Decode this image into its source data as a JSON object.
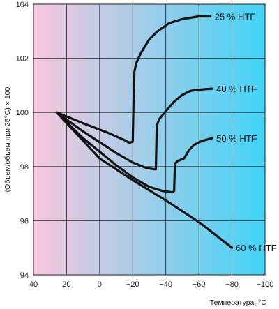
{
  "chart_data": {
    "type": "line",
    "title": "",
    "xlabel": "Температура, °C",
    "ylabel": "(Объем/объем при 25°C) × 100",
    "x_reversed": true,
    "xlim": [
      40,
      -100
    ],
    "ylim": [
      94,
      104
    ],
    "x_ticks": [
      40,
      20,
      0,
      -20,
      -40,
      -60,
      -80,
      -100
    ],
    "y_ticks": [
      94,
      96,
      98,
      100,
      102,
      104
    ],
    "x_tick_labels": [
      "40",
      "20",
      "0",
      "−20",
      "−40",
      "−60",
      "−80",
      "−100"
    ],
    "y_tick_labels": [
      "94",
      "96",
      "98",
      "100",
      "102",
      "104"
    ],
    "grid": true,
    "background_gradient": [
      "#f9c8de",
      "#40d3f5"
    ],
    "line_color": "#111111",
    "series": [
      {
        "name": "25 % HTF",
        "points": [
          [
            26,
            100.0
          ],
          [
            10,
            99.6
          ],
          [
            -5,
            99.25
          ],
          [
            -15,
            98.98
          ],
          [
            -18,
            98.88
          ],
          [
            -20,
            98.92
          ],
          [
            -20.5,
            100.5
          ],
          [
            -21,
            101.5
          ],
          [
            -22,
            101.8
          ],
          [
            -25,
            102.2
          ],
          [
            -30,
            102.7
          ],
          [
            -35,
            103.0
          ],
          [
            -42,
            103.3
          ],
          [
            -50,
            103.45
          ],
          [
            -60,
            103.55
          ],
          [
            -67,
            103.55
          ]
        ]
      },
      {
        "name": "40 % HTF",
        "points": [
          [
            26,
            100.0
          ],
          [
            10,
            99.3
          ],
          [
            0,
            98.9
          ],
          [
            -10,
            98.5
          ],
          [
            -20,
            98.15
          ],
          [
            -28,
            97.95
          ],
          [
            -33,
            97.9
          ],
          [
            -34,
            97.9
          ],
          [
            -34.5,
            99.5
          ],
          [
            -36,
            99.75
          ],
          [
            -40,
            100.05
          ],
          [
            -45,
            100.4
          ],
          [
            -50,
            100.65
          ],
          [
            -55,
            100.8
          ],
          [
            -62,
            100.85
          ],
          [
            -68,
            100.88
          ]
        ]
      },
      {
        "name": "50 % HTF",
        "points": [
          [
            26,
            100.0
          ],
          [
            10,
            99.05
          ],
          [
            0,
            98.55
          ],
          [
            -10,
            98.05
          ],
          [
            -20,
            97.6
          ],
          [
            -30,
            97.25
          ],
          [
            -38,
            97.1
          ],
          [
            -44,
            97.05
          ],
          [
            -45,
            97.1
          ],
          [
            -45.5,
            98.1
          ],
          [
            -47,
            98.2
          ],
          [
            -51,
            98.3
          ],
          [
            -54,
            98.6
          ],
          [
            -57,
            98.8
          ],
          [
            -62,
            98.95
          ],
          [
            -68,
            99.05
          ]
        ]
      },
      {
        "name": "60 % HTF",
        "points": [
          [
            26,
            100.0
          ],
          [
            0,
            98.3
          ],
          [
            -20,
            97.5
          ],
          [
            -40,
            96.75
          ],
          [
            -60,
            95.95
          ],
          [
            -80,
            95.0
          ]
        ]
      }
    ]
  }
}
